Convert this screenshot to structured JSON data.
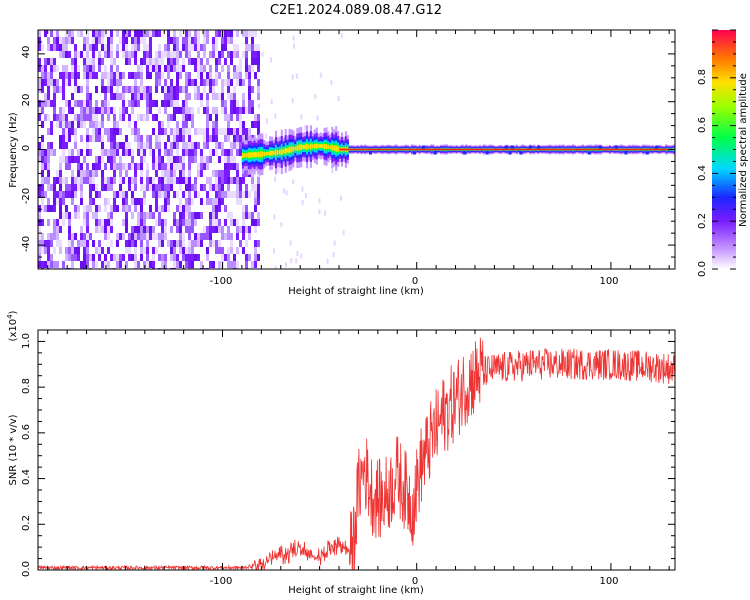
{
  "figure_title": "C2E1.2024.089.08.47.G12",
  "colorbar": {
    "label": "Normalized spectral amplitude",
    "ticks": [
      "0.0",
      "0.2",
      "0.4",
      "0.6",
      "0.8"
    ],
    "range": [
      0,
      1
    ],
    "colormap": "white-violet-blue-cyan-green-yellow-red"
  },
  "chart_data": [
    {
      "type": "heatmap",
      "title": "",
      "xlabel": "Height of straight line (km)",
      "ylabel": "Frequency (Hz)",
      "xlim": [
        -195,
        133
      ],
      "ylim": [
        -50,
        50
      ],
      "xticks": [
        "-100",
        "0",
        "100"
      ],
      "yticks": [
        "-40",
        "-20",
        "0",
        "20",
        "40"
      ],
      "features": {
        "noise_region_x": [
          -195,
          -82
        ],
        "signal_start_x": -90,
        "signal_track": [
          {
            "x": -90,
            "y": -2.5
          },
          {
            "x": -80,
            "y": -2
          },
          {
            "x": -70,
            "y": -1
          },
          {
            "x": -60,
            "y": 1
          },
          {
            "x": -50,
            "y": 1.5
          },
          {
            "x": -45,
            "y": 1
          },
          {
            "x": -40,
            "y": 0
          },
          {
            "x": 0,
            "y": 0
          },
          {
            "x": 133,
            "y": 0
          }
        ]
      }
    },
    {
      "type": "line",
      "title": "",
      "xlabel": "Height of straight line (km)",
      "ylabel": "SNR (10 * v/v)",
      "y_multiplier_label": "(x10",
      "y_multiplier_exp": "4",
      "xlim": [
        -195,
        133
      ],
      "ylim": [
        0,
        1.05
      ],
      "xticks": [
        "-100",
        "0",
        "100"
      ],
      "yticks": [
        "0.0",
        "0.2",
        "0.4",
        "0.6",
        "0.8",
        "1.0"
      ],
      "color": "#ee3333",
      "series": [
        {
          "points": [
            {
              "x": -195,
              "y": 0.01
            },
            {
              "x": -120,
              "y": 0.01
            },
            {
              "x": -90,
              "y": 0.01
            },
            {
              "x": -82,
              "y": 0.02
            },
            {
              "x": -75,
              "y": 0.05
            },
            {
              "x": -68,
              "y": 0.07
            },
            {
              "x": -60,
              "y": 0.1
            },
            {
              "x": -55,
              "y": 0.05
            },
            {
              "x": -48,
              "y": 0.07
            },
            {
              "x": -42,
              "y": 0.12
            },
            {
              "x": -38,
              "y": 0.1
            },
            {
              "x": -33,
              "y": 0.08
            },
            {
              "x": -30,
              "y": 0.35
            },
            {
              "x": -27,
              "y": 0.45
            },
            {
              "x": -23,
              "y": 0.33
            },
            {
              "x": -18,
              "y": 0.3
            },
            {
              "x": -14,
              "y": 0.35
            },
            {
              "x": -10,
              "y": 0.42
            },
            {
              "x": -6,
              "y": 0.35
            },
            {
              "x": -2,
              "y": 0.28
            },
            {
              "x": 2,
              "y": 0.45
            },
            {
              "x": 8,
              "y": 0.58
            },
            {
              "x": 14,
              "y": 0.68
            },
            {
              "x": 20,
              "y": 0.74
            },
            {
              "x": 26,
              "y": 0.82
            },
            {
              "x": 32,
              "y": 0.86
            },
            {
              "x": 40,
              "y": 0.88
            },
            {
              "x": 60,
              "y": 0.9
            },
            {
              "x": 80,
              "y": 0.9
            },
            {
              "x": 100,
              "y": 0.9
            },
            {
              "x": 120,
              "y": 0.89
            },
            {
              "x": 133,
              "y": 0.88
            }
          ]
        }
      ]
    }
  ]
}
